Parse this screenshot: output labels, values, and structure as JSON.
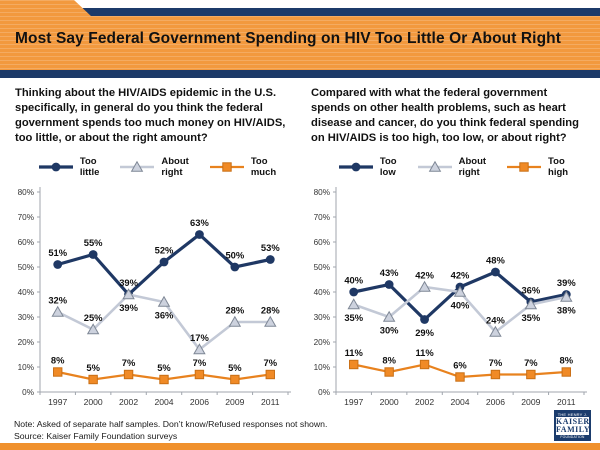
{
  "header": {
    "title": "Most Say Federal Government Spending on HIV Too Little Or About Right"
  },
  "panels": [
    {
      "question": "Thinking about the HIV/AIDS epidemic in the U.S. specifically, in general do you think the federal government spends too much money on HIV/AIDS, too little, or about the right amount?"
    },
    {
      "question": "Compared with what the federal government spends on other health problems, such as heart disease and cancer, do you think federal spending on HIV/AIDS is too high, too low, or about right?"
    }
  ],
  "chart_data": [
    {
      "type": "line",
      "title": "Federal spending on HIV/AIDS in general",
      "categories": [
        "1997",
        "2000",
        "2002",
        "2004",
        "2006",
        "2009",
        "2011"
      ],
      "ylim": [
        0,
        80
      ],
      "ytick_labels": [
        "0%",
        "10%",
        "20%",
        "30%",
        "40%",
        "50%",
        "60%",
        "70%",
        "80%"
      ],
      "grid": false,
      "legend_position": "top",
      "series": [
        {
          "name": "Too little",
          "marker": "circle",
          "color": "#1f3864",
          "marker_fill": "#1f3864",
          "marker_stroke": "#1f3864",
          "line_width": 3.2,
          "values": [
            51,
            55,
            39,
            52,
            63,
            50,
            53
          ],
          "label_pos": [
            "above",
            "above",
            "above",
            "above",
            "above",
            "above",
            "above"
          ]
        },
        {
          "name": "About right",
          "marker": "triangle",
          "color": "#c3c9d6",
          "marker_fill": "#cdd2de",
          "marker_stroke": "#7e8795",
          "line_width": 2.6,
          "values": [
            32,
            25,
            39,
            36,
            17,
            28,
            28
          ],
          "label_pos": [
            "above",
            "above",
            "below",
            "below",
            "above",
            "above",
            "above"
          ]
        },
        {
          "name": "Too much",
          "marker": "square",
          "color": "#e8821e",
          "marker_fill": "#f08a26",
          "marker_stroke": "#c96f15",
          "line_width": 2.2,
          "values": [
            8,
            5,
            7,
            5,
            7,
            5,
            7
          ],
          "label_pos": [
            "above",
            "above",
            "above",
            "above",
            "above",
            "above",
            "above"
          ]
        }
      ]
    },
    {
      "type": "line",
      "title": "Federal spending on HIV/AIDS compared with other health problems",
      "categories": [
        "1997",
        "2000",
        "2002",
        "2004",
        "2006",
        "2009",
        "2011"
      ],
      "ylim": [
        0,
        80
      ],
      "ytick_labels": [
        "0%",
        "10%",
        "20%",
        "30%",
        "40%",
        "50%",
        "60%",
        "70%",
        "80%"
      ],
      "grid": false,
      "legend_position": "top",
      "series": [
        {
          "name": "Too low",
          "marker": "circle",
          "color": "#1f3864",
          "marker_fill": "#1f3864",
          "marker_stroke": "#1f3864",
          "line_width": 3.2,
          "values": [
            40,
            43,
            29,
            42,
            48,
            36,
            39
          ],
          "label_pos": [
            "above",
            "above",
            "below",
            "above",
            "above",
            "above",
            "above"
          ]
        },
        {
          "name": "About right",
          "marker": "triangle",
          "color": "#c3c9d6",
          "marker_fill": "#cdd2de",
          "marker_stroke": "#7e8795",
          "line_width": 2.6,
          "values": [
            35,
            30,
            42,
            40,
            24,
            35,
            38
          ],
          "label_pos": [
            "below",
            "below",
            "above",
            "below",
            "above",
            "below",
            "below"
          ]
        },
        {
          "name": "Too high",
          "marker": "square",
          "color": "#e8821e",
          "marker_fill": "#f08a26",
          "marker_stroke": "#c96f15",
          "line_width": 2.2,
          "values": [
            11,
            8,
            11,
            6,
            7,
            7,
            8
          ],
          "label_pos": [
            "above",
            "above",
            "above",
            "above",
            "above",
            "above",
            "above"
          ]
        }
      ]
    }
  ],
  "footer": {
    "note": "Note: Asked of separate half samples. Don’t know/Refused responses not shown.",
    "source": "Source: Kaiser Family Foundation surveys"
  },
  "logo": {
    "line1": "THE HENRY J.",
    "line2": "KAISER",
    "line3": "FAMILY",
    "line4": "FOUNDATION"
  },
  "colors": {
    "navy": "#1c3a69",
    "orange_band": "#f2993e",
    "orange_bar": "#f0912d",
    "series_navy": "#1f3864",
    "series_gray": "#c3c9d6",
    "series_orange": "#e8821e",
    "axis": "#a0a5ad"
  }
}
